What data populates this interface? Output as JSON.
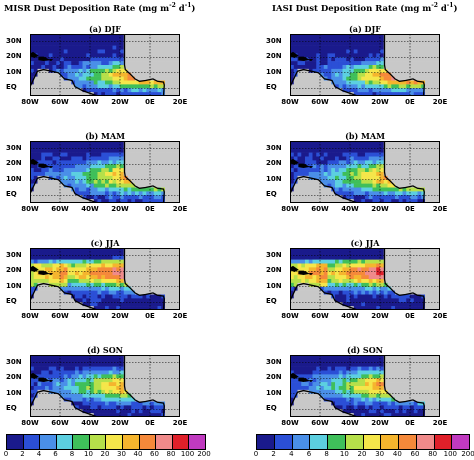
{
  "columns": [
    {
      "title_prefix": "MISR Dust Deposition Rate (mg m",
      "title_mid": " d",
      "title_suffix": ")",
      "exp1": "-2",
      "exp2": "-1",
      "panels": [
        {
          "label": "(a) DJF",
          "pattern": "misr-djf"
        },
        {
          "label": "(b) MAM",
          "pattern": "misr-mam"
        },
        {
          "label": "(c) JJA",
          "pattern": "misr-jja"
        },
        {
          "label": "(d) SON",
          "pattern": "misr-son"
        }
      ],
      "colorbar_ticks": [
        "0",
        "2",
        "4",
        "6",
        "8",
        "10",
        "20",
        "30",
        "40",
        "60",
        "80",
        "100",
        "200"
      ]
    },
    {
      "title_prefix": "IASI Dust Deposition Rate (mg m",
      "title_mid": " d",
      "title_suffix": ")",
      "exp1": "-2",
      "exp2": "-1",
      "panels": [
        {
          "label": "(a) DJF",
          "pattern": "iasi-djf"
        },
        {
          "label": "(b) MAM",
          "pattern": "iasi-mam"
        },
        {
          "label": "(c) JJA",
          "pattern": "iasi-jja"
        },
        {
          "label": "(d) SON",
          "pattern": "iasi-son"
        }
      ],
      "colorbar_ticks": [
        "0",
        "2",
        "4",
        "6",
        "8",
        "10",
        "20",
        "30",
        "40",
        "60",
        "80",
        "100",
        "200"
      ]
    }
  ],
  "lat_labels": [
    "30N",
    "20N",
    "10N",
    "EQ"
  ],
  "lon_labels": [
    "80W",
    "60W",
    "40W",
    "20W",
    "0E",
    "20E"
  ],
  "colors": {
    "c0": "#1a1a8c",
    "c1": "#2b4fd6",
    "c2": "#4a8fe8",
    "c3": "#5ccfe0",
    "c4": "#3fbf5a",
    "c5": "#b6e04a",
    "c6": "#f5e64a",
    "c7": "#f5b52e",
    "c8": "#f5893a",
    "c9": "#f08a8a",
    "c10": "#e0202a",
    "c11": "#c03ac0",
    "land": "#c8c8c8"
  }
}
